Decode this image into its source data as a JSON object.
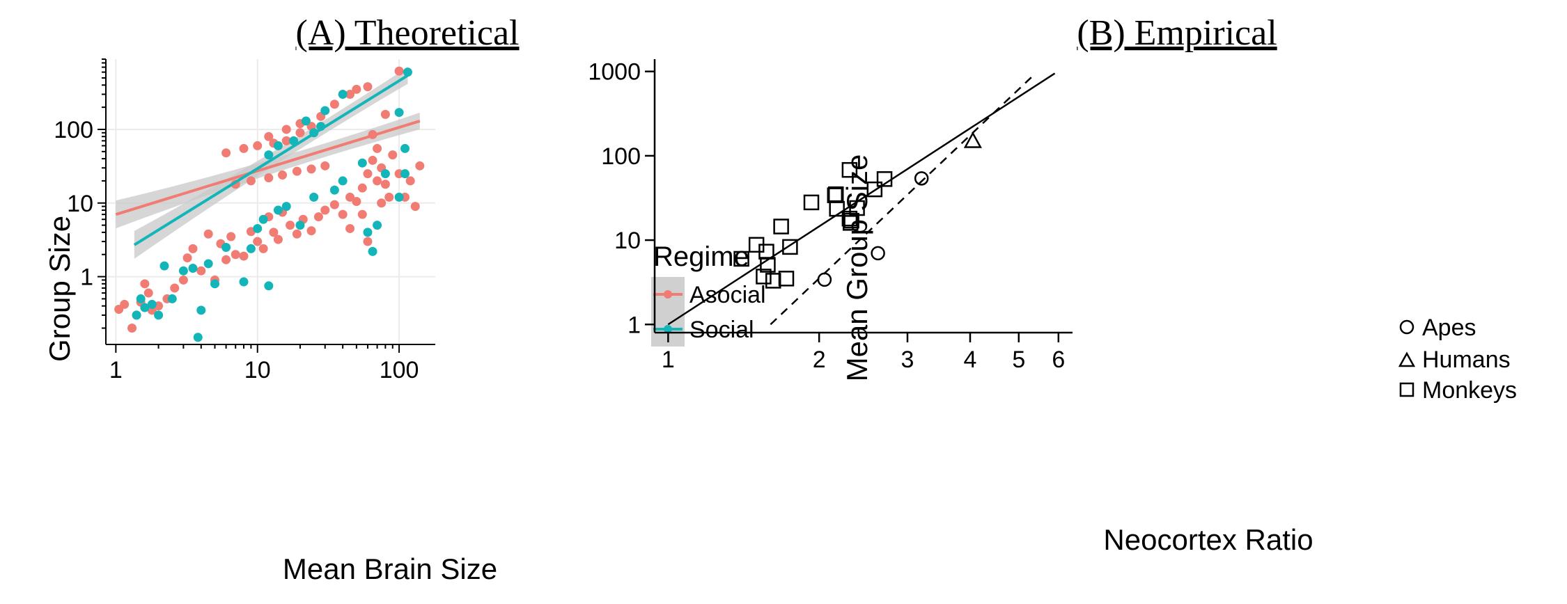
{
  "chart_data": [
    {
      "type": "scatter",
      "title": "(A) Theoretical",
      "xlabel": "Mean Brain Size",
      "ylabel": "Group Size",
      "xscale": "log",
      "yscale": "log",
      "xlim": [
        0.85,
        180
      ],
      "ylim": [
        0.12,
        900
      ],
      "xticks": [
        1,
        10,
        100
      ],
      "xtick_labels": [
        "1",
        "10",
        "100"
      ],
      "yticks": [
        1,
        10,
        100
      ],
      "ytick_labels": [
        "1",
        "10",
        "100"
      ],
      "grid": true,
      "legend": {
        "title": "Regime",
        "position": "right",
        "entries": [
          "Asocial",
          "Social"
        ]
      },
      "colors": {
        "Asocial": "#f07c73",
        "Social": "#14b5b9",
        "ci_band": "#c8c8c8",
        "grid": "#ebebeb"
      },
      "series": [
        {
          "name": "Asocial",
          "fit": {
            "x": [
              1,
              140
            ],
            "y": [
              7,
              130
            ]
          },
          "points": [
            [
              1.05,
              0.36
            ],
            [
              1.15,
              0.42
            ],
            [
              1.3,
              0.2
            ],
            [
              1.4,
              0.3
            ],
            [
              1.5,
              0.45
            ],
            [
              1.6,
              0.8
            ],
            [
              1.7,
              0.6
            ],
            [
              1.8,
              0.35
            ],
            [
              2.0,
              0.4
            ],
            [
              2.3,
              0.5
            ],
            [
              2.6,
              0.7
            ],
            [
              3.0,
              0.9
            ],
            [
              3.2,
              1.8
            ],
            [
              3.5,
              2.4
            ],
            [
              4.0,
              1.2
            ],
            [
              4.5,
              3.8
            ],
            [
              5.0,
              0.9
            ],
            [
              5.5,
              2.8
            ],
            [
              6.0,
              1.7
            ],
            [
              6.5,
              3.5
            ],
            [
              7.0,
              2.0
            ],
            [
              8.0,
              1.9
            ],
            [
              9.0,
              4.1
            ],
            [
              10.0,
              3.0
            ],
            [
              11.0,
              2.4
            ],
            [
              12.0,
              6.5
            ],
            [
              13.0,
              4.0
            ],
            [
              14.0,
              3.2
            ],
            [
              15.0,
              7.5
            ],
            [
              17.0,
              5.0
            ],
            [
              19.0,
              3.8
            ],
            [
              21.0,
              6.0
            ],
            [
              24.0,
              4.2
            ],
            [
              27.0,
              6.5
            ],
            [
              30.0,
              8.0
            ],
            [
              35.0,
              9.5
            ],
            [
              40.0,
              7.0
            ],
            [
              45.0,
              12.0
            ],
            [
              50.0,
              10.5
            ],
            [
              55.0,
              16.0
            ],
            [
              60.0,
              25.0
            ],
            [
              65.0,
              38.0
            ],
            [
              70.0,
              55.0
            ],
            [
              75.0,
              30.0
            ],
            [
              80.0,
              18.0
            ],
            [
              85.0,
              12.0
            ],
            [
              90.0,
              45.0
            ],
            [
              100.0,
              25.0
            ],
            [
              110.0,
              12.0
            ],
            [
              120.0,
              20.0
            ],
            [
              130.0,
              9.0
            ],
            [
              140.0,
              32.0
            ],
            [
              7.0,
              18.0
            ],
            [
              9.0,
              20.0
            ],
            [
              12.0,
              22.0
            ],
            [
              15.0,
              24.0
            ],
            [
              19.0,
              27.0
            ],
            [
              24.0,
              29.0
            ],
            [
              30.0,
              32.0
            ],
            [
              6.0,
              48.0
            ],
            [
              8.0,
              55.0
            ],
            [
              10.0,
              60.0
            ],
            [
              13.0,
              65.0
            ],
            [
              16.0,
              70.0
            ],
            [
              20.0,
              90.0
            ],
            [
              24.0,
              110.0
            ],
            [
              28.0,
              150.0
            ],
            [
              12.0,
              80.0
            ],
            [
              16.0,
              100.0
            ],
            [
              20.0,
              120.0
            ],
            [
              35.0,
              220.0
            ],
            [
              45.0,
              300.0
            ],
            [
              50.0,
              350.0
            ],
            [
              60.0,
              380.0
            ],
            [
              80.0,
              160.0
            ],
            [
              100.0,
              620.0
            ],
            [
              65.0,
              85.0
            ],
            [
              70.0,
              20.0
            ],
            [
              75.0,
              10.0
            ],
            [
              55.0,
              7.0
            ],
            [
              60.0,
              3.0
            ],
            [
              45.0,
              4.5
            ]
          ]
        },
        {
          "name": "Social",
          "fit": {
            "x": [
              1.35,
              115
            ],
            "y": [
              2.7,
              540
            ]
          },
          "points": [
            [
              1.4,
              0.3
            ],
            [
              1.5,
              0.5
            ],
            [
              1.6,
              0.38
            ],
            [
              1.8,
              0.42
            ],
            [
              2.0,
              0.3
            ],
            [
              2.2,
              1.4
            ],
            [
              2.5,
              0.5
            ],
            [
              3.0,
              1.2
            ],
            [
              3.5,
              1.3
            ],
            [
              3.8,
              0.15
            ],
            [
              4.0,
              0.35
            ],
            [
              4.5,
              1.5
            ],
            [
              5.0,
              0.8
            ],
            [
              6.0,
              2.5
            ],
            [
              8.0,
              0.85
            ],
            [
              9.0,
              2.4
            ],
            [
              10.0,
              4.5
            ],
            [
              11.0,
              6.0
            ],
            [
              12.0,
              0.75
            ],
            [
              14.0,
              8.0
            ],
            [
              16.0,
              9.0
            ],
            [
              18.0,
              70.0
            ],
            [
              20.0,
              5.0
            ],
            [
              25.0,
              12.0
            ],
            [
              30.0,
              180.0
            ],
            [
              35.0,
              15.0
            ],
            [
              40.0,
              20.0
            ],
            [
              60.0,
              4.0
            ],
            [
              65.0,
              2.2
            ],
            [
              70.0,
              5.0
            ],
            [
              80.0,
              25.0
            ],
            [
              100.0,
              12.0
            ],
            [
              110.0,
              55.0
            ],
            [
              115.0,
              600.0
            ],
            [
              100.0,
              170.0
            ],
            [
              12.0,
              45.0
            ],
            [
              14.0,
              60.0
            ],
            [
              22.0,
              130.0
            ],
            [
              25.0,
              90.0
            ],
            [
              40.0,
              300.0
            ],
            [
              28.0,
              110.0
            ],
            [
              55.0,
              35.0
            ],
            [
              110.0,
              25.0
            ]
          ]
        }
      ]
    },
    {
      "type": "scatter",
      "title": "(B) Empirical",
      "xlabel": "Neocortex Ratio",
      "ylabel": "Mean Group Size",
      "xscale": "log",
      "yscale": "log",
      "xlim": [
        0.94,
        6.4
      ],
      "ylim": [
        0.8,
        1400
      ],
      "xticks": [
        1,
        2,
        3,
        4,
        5,
        6
      ],
      "xtick_labels": [
        "1",
        "2",
        "3",
        "4",
        "5",
        "6"
      ],
      "yticks": [
        1,
        10,
        100,
        1000
      ],
      "ytick_labels": [
        "1",
        "10",
        "100",
        "1000"
      ],
      "grid": false,
      "legend": {
        "position": "bottom-right",
        "entries": [
          "Apes",
          "Humans",
          "Monkeys"
        ]
      },
      "fits": [
        {
          "style": "solid",
          "x": [
            1.0,
            5.9
          ],
          "y": [
            1.0,
            950.0
          ]
        },
        {
          "style": "dashed",
          "x": [
            1.6,
            5.4
          ],
          "y": [
            1.0,
            950.0
          ]
        }
      ],
      "series": [
        {
          "name": "Apes",
          "marker": "circle",
          "points": [
            [
              2.05,
              3.4
            ],
            [
              2.62,
              7.0
            ],
            [
              3.2,
              54.0
            ]
          ]
        },
        {
          "name": "Humans",
          "marker": "triangle",
          "points": [
            [
              4.05,
              150.0
            ]
          ]
        },
        {
          "name": "Monkeys",
          "marker": "square",
          "points": [
            [
              1.4,
              6.0
            ],
            [
              1.5,
              8.8
            ],
            [
              1.55,
              3.7
            ],
            [
              1.57,
              7.3
            ],
            [
              1.58,
              5.1
            ],
            [
              1.62,
              3.3
            ],
            [
              1.68,
              14.5
            ],
            [
              1.72,
              3.5
            ],
            [
              1.75,
              8.3
            ],
            [
              1.93,
              28.0
            ],
            [
              2.15,
              34.0
            ],
            [
              2.16,
              35.0
            ],
            [
              2.17,
              23.5
            ],
            [
              2.3,
              18.0
            ],
            [
              2.31,
              16.0
            ],
            [
              2.32,
              17.0
            ],
            [
              2.38,
              24.0
            ],
            [
              2.3,
              68.0
            ],
            [
              2.58,
              40.0
            ],
            [
              2.7,
              53.0
            ]
          ]
        }
      ]
    }
  ]
}
